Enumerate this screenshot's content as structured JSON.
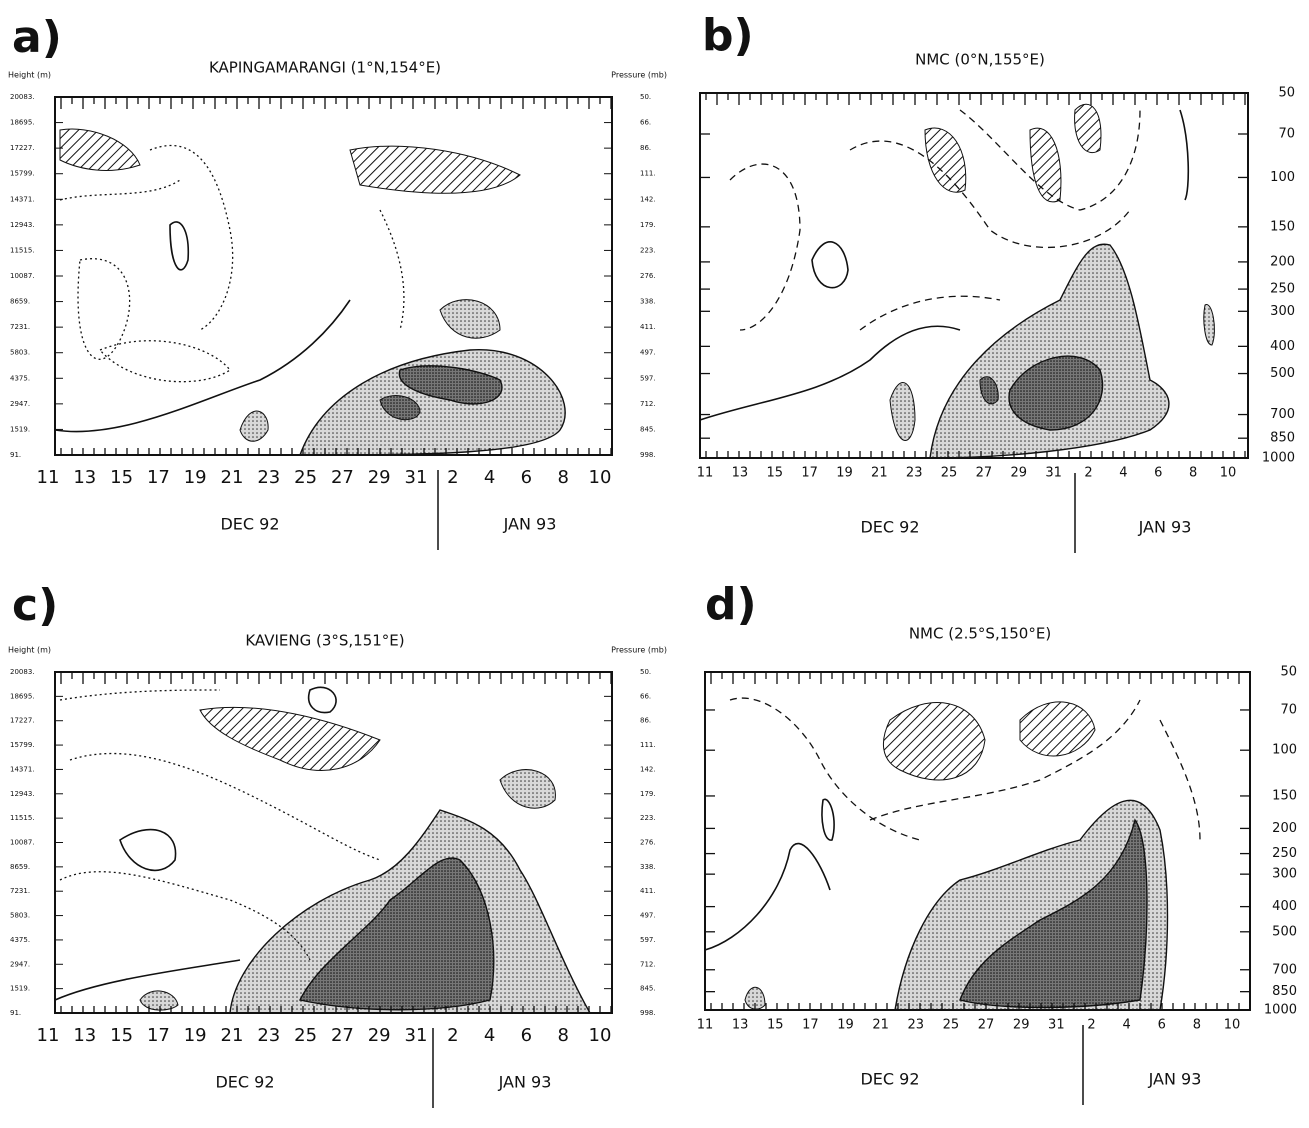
{
  "panels": [
    {
      "letter": "a)",
      "title": "KAPINGAMARANGI (1°N,154°E)",
      "left_axis_title": "Height (m)",
      "right_axis_title": "Pressure (mb)",
      "left_ticks": [
        "20083.",
        "18695.",
        "17227.",
        "15799.",
        "14371.",
        "12943.",
        "11515.",
        "10087.",
        "8659.",
        "7231.",
        "5803.",
        "4375.",
        "2947.",
        "1519.",
        "91."
      ],
      "right_ticks": [
        "50.",
        "66.",
        "86.",
        "111.",
        "142.",
        "179.",
        "223.",
        "276.",
        "338.",
        "411.",
        "497.",
        "597.",
        "712.",
        "845.",
        "998."
      ],
      "x_ticks": [
        "11",
        "13",
        "15",
        "17",
        "19",
        "21",
        "23",
        "25",
        "27",
        "29",
        "31",
        "2",
        "4",
        "6",
        "8",
        "10"
      ],
      "months": [
        "DEC 92",
        "JAN 93"
      ]
    },
    {
      "letter": "b)",
      "title": "NMC (0°N,155°E)",
      "right_ticks": [
        50,
        70,
        100,
        150,
        200,
        250,
        300,
        400,
        500,
        700,
        850,
        1000
      ],
      "x_ticks": [
        "11",
        "13",
        "15",
        "17",
        "19",
        "21",
        "23",
        "25",
        "27",
        "29",
        "31",
        "2",
        "4",
        "6",
        "8",
        "10"
      ],
      "months": [
        "DEC 92",
        "JAN 93"
      ]
    },
    {
      "letter": "c)",
      "title": "KAVIENG (3°S,151°E)",
      "left_axis_title": "Height (m)",
      "right_axis_title": "Pressure (mb)",
      "left_ticks": [
        "20083.",
        "18695.",
        "17227.",
        "15799.",
        "14371.",
        "12943.",
        "11515.",
        "10087.",
        "8659.",
        "7231.",
        "5803.",
        "4375.",
        "2947.",
        "1519.",
        "91."
      ],
      "right_ticks": [
        "50.",
        "66.",
        "86.",
        "111.",
        "142.",
        "179.",
        "223.",
        "276.",
        "338.",
        "411.",
        "497.",
        "597.",
        "712.",
        "845.",
        "998."
      ],
      "x_ticks": [
        "11",
        "13",
        "15",
        "17",
        "19",
        "21",
        "23",
        "25",
        "27",
        "29",
        "31",
        "2",
        "4",
        "6",
        "8",
        "10"
      ],
      "months": [
        "DEC 92",
        "JAN 93"
      ]
    },
    {
      "letter": "d)",
      "title": "NMC (2.5°S,150°E)",
      "right_ticks": [
        50,
        70,
        100,
        150,
        200,
        250,
        300,
        400,
        500,
        700,
        850,
        1000
      ],
      "x_ticks": [
        "11",
        "13",
        "15",
        "17",
        "19",
        "21",
        "23",
        "25",
        "27",
        "29",
        "31",
        "2",
        "4",
        "6",
        "8",
        "10"
      ],
      "months": [
        "DEC 92",
        "JAN 93"
      ]
    }
  ]
}
